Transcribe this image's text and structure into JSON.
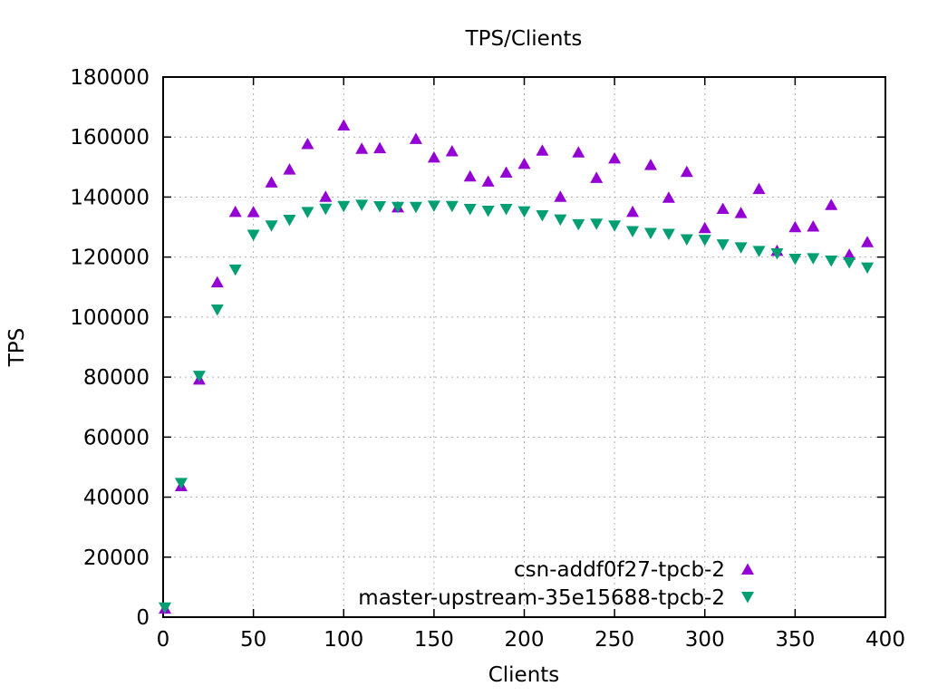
{
  "chart_data": {
    "type": "scatter",
    "title": "TPS/Clients",
    "xlabel": "Clients",
    "ylabel": "TPS",
    "xlim": [
      0,
      400
    ],
    "ylim": [
      0,
      180000
    ],
    "x_ticks": [
      0,
      50,
      100,
      150,
      200,
      250,
      300,
      350,
      400
    ],
    "y_ticks": [
      0,
      20000,
      40000,
      60000,
      80000,
      100000,
      120000,
      140000,
      160000,
      180000
    ],
    "grid": true,
    "legend_position": "inside-bottom-right",
    "grid_color": "#b0b0b0",
    "border_color": "#000000",
    "x": [
      1,
      10,
      20,
      30,
      40,
      50,
      60,
      70,
      80,
      90,
      100,
      110,
      120,
      130,
      140,
      150,
      160,
      170,
      180,
      190,
      200,
      210,
      220,
      230,
      240,
      250,
      260,
      270,
      280,
      290,
      300,
      310,
      320,
      330,
      340,
      350,
      360,
      370,
      380,
      390
    ],
    "series": [
      {
        "name": "csn-addf0f27-tpcb-2",
        "marker": "triangle-up",
        "color": "#9400D3",
        "values": [
          3000,
          43800,
          79300,
          111700,
          135200,
          135100,
          145000,
          149300,
          157800,
          140200,
          164000,
          156200,
          156400,
          136700,
          159500,
          153300,
          155400,
          147000,
          145300,
          148300,
          151200,
          155600,
          140200,
          155000,
          146500,
          153000,
          135200,
          150800,
          139900,
          148500,
          129800,
          136200,
          134800,
          142800,
          122200,
          130100,
          130300,
          137500,
          120900,
          125100
        ]
      },
      {
        "name": "master-upstream-35e15688-tpcb-2",
        "marker": "triangle-down",
        "color": "#009E73",
        "values": [
          3100,
          44600,
          80300,
          102400,
          115700,
          127300,
          130400,
          132300,
          134900,
          136000,
          136900,
          137300,
          136800,
          136600,
          136600,
          137000,
          136900,
          135900,
          135300,
          135900,
          135100,
          133800,
          132400,
          130800,
          131000,
          130400,
          128500,
          127900,
          127600,
          125800,
          125600,
          124100,
          123100,
          121900,
          121100,
          119300,
          119500,
          118700,
          118100,
          116400
        ]
      }
    ]
  }
}
